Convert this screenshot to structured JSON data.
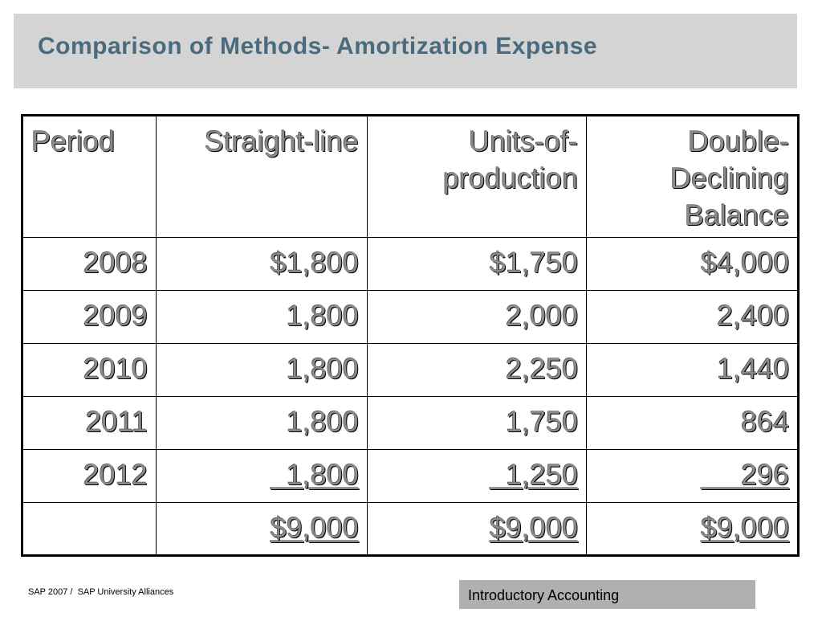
{
  "title": "Comparison of Methods- Amortization Expense",
  "table": {
    "headers": {
      "period": "Period",
      "straight_line": "Straight-line",
      "units_of_production": "Units-of-production",
      "double_declining": "Double-Declining Balance"
    },
    "rows": [
      {
        "period": "2008",
        "straight_line": "$1,800",
        "units_of_production": "$1,750",
        "double_declining": "$4,000"
      },
      {
        "period": "2009",
        "straight_line": "1,800",
        "units_of_production": "2,000",
        "double_declining": "2,400"
      },
      {
        "period": "2010",
        "straight_line": "1,800",
        "units_of_production": "2,250",
        "double_declining": "1,440"
      },
      {
        "period": "2011",
        "straight_line": "1,800",
        "units_of_production": "1,750",
        "double_declining": "864"
      },
      {
        "period": "2012",
        "straight_line": "  1,800",
        "units_of_production": "  1,250",
        "double_declining": "     296"
      }
    ],
    "totals": {
      "period": "",
      "straight_line": "$9,000",
      "units_of_production": "$9,000",
      "double_declining": "$9,000"
    }
  },
  "footer": {
    "left_text": "SAP 2007 /  SAP University Alliances",
    "right_text": "Introductory Accounting"
  },
  "colors": {
    "title": "#4a6a7e",
    "title_bar": "#d4d4d4",
    "footer_box": "#b0b0b0"
  }
}
